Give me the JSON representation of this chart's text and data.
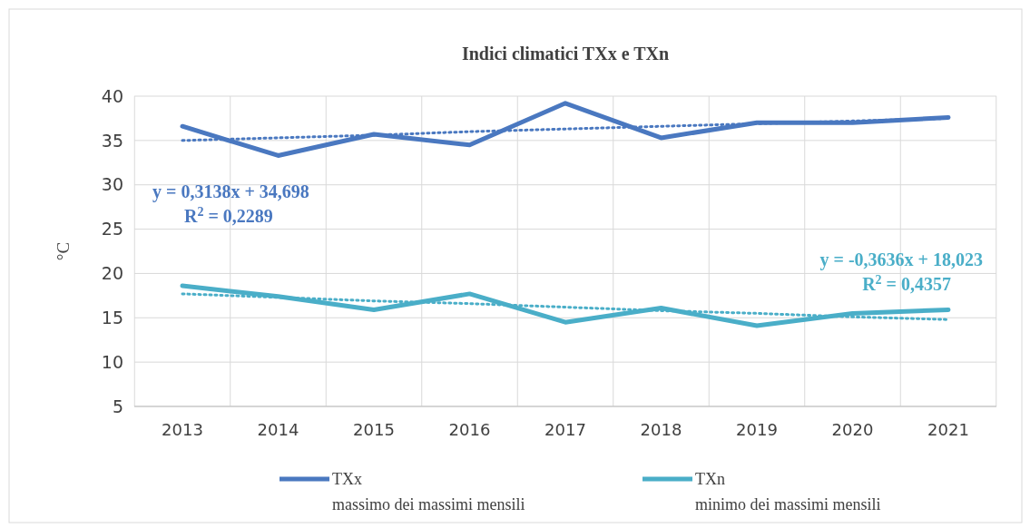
{
  "chart_data": {
    "type": "line",
    "title": "Indici climatici TXx e TXn",
    "ylabel": "°C",
    "categories": [
      "2013",
      "2014",
      "2015",
      "2016",
      "2017",
      "2018",
      "2019",
      "2020",
      "2021"
    ],
    "series": [
      {
        "name": "TXx\nmassimo dei massimi mensili",
        "color": "#4a78c0",
        "values": [
          36.6,
          33.3,
          35.7,
          34.5,
          39.2,
          35.3,
          37.0,
          37.0,
          37.6
        ]
      },
      {
        "name": "TXn\nminimo dei massimi mensili",
        "color": "#4aaec8",
        "values": [
          18.6,
          17.4,
          15.9,
          17.7,
          14.5,
          16.1,
          14.1,
          15.5,
          15.9
        ]
      },
      {
        "color": "#4a78c0",
        "line_style": "dotted",
        "values": [
          35.0,
          35.3,
          35.6,
          36.0,
          36.3,
          36.6,
          36.9,
          37.2,
          37.5
        ]
      },
      {
        "color": "#4aaec8",
        "line_style": "dotted",
        "values": [
          17.7,
          17.3,
          16.9,
          16.6,
          16.2,
          15.8,
          15.5,
          15.1,
          14.8
        ]
      }
    ],
    "ylim": [
      5,
      40
    ],
    "yticks": [
      5,
      10,
      15,
      20,
      25,
      30,
      35,
      40
    ],
    "grid": true,
    "legend": "bottom",
    "line_style": "solid",
    "marker": "none",
    "annotations": [
      "y = 0,3138x + 34,698\nR$^{2}$ = 0,2289",
      "y = -0,3636x + 18,023\nR$^{2}$ = 0,4357"
    ]
  }
}
